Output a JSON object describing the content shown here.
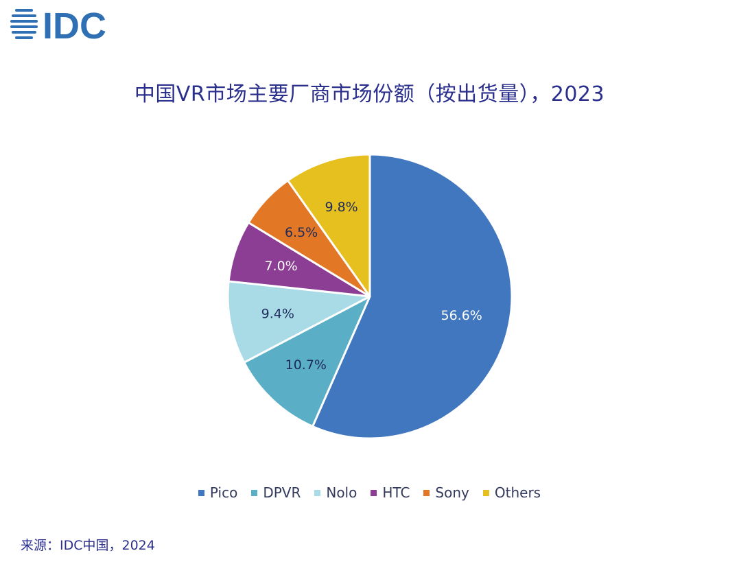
{
  "logo": {
    "text": "IDC",
    "color": "#2f6fb4"
  },
  "chart_data": {
    "type": "pie",
    "title": "中国VR市场主要厂商市场份额（按出货量），2023",
    "unit": "%",
    "slices": [
      {
        "name": "Pico",
        "value": 56.6,
        "label": "56.6%",
        "color": "#4177bf",
        "label_color": "#ffffff"
      },
      {
        "name": "DPVR",
        "value": 10.7,
        "label": "10.7%",
        "color": "#5aaec6",
        "label_color": "#1f2a5c"
      },
      {
        "name": "Nolo",
        "value": 9.4,
        "label": "9.4%",
        "color": "#a9dbe7",
        "label_color": "#1f2a5c"
      },
      {
        "name": "HTC",
        "value": 7.0,
        "label": "7.0%",
        "color": "#8c3d94",
        "label_color": "#ffffff"
      },
      {
        "name": "Sony",
        "value": 6.5,
        "label": "6.5%",
        "color": "#e27825",
        "label_color": "#1f2a5c"
      },
      {
        "name": "Others",
        "value": 9.8,
        "label": "9.8%",
        "color": "#e6c01e",
        "label_color": "#1f2a5c"
      }
    ],
    "legend": {
      "position": "bottom",
      "entries": [
        "Pico",
        "DPVR",
        "Nolo",
        "HTC",
        "Sony",
        "Others"
      ]
    }
  },
  "source": "来源：IDC中国，2024"
}
